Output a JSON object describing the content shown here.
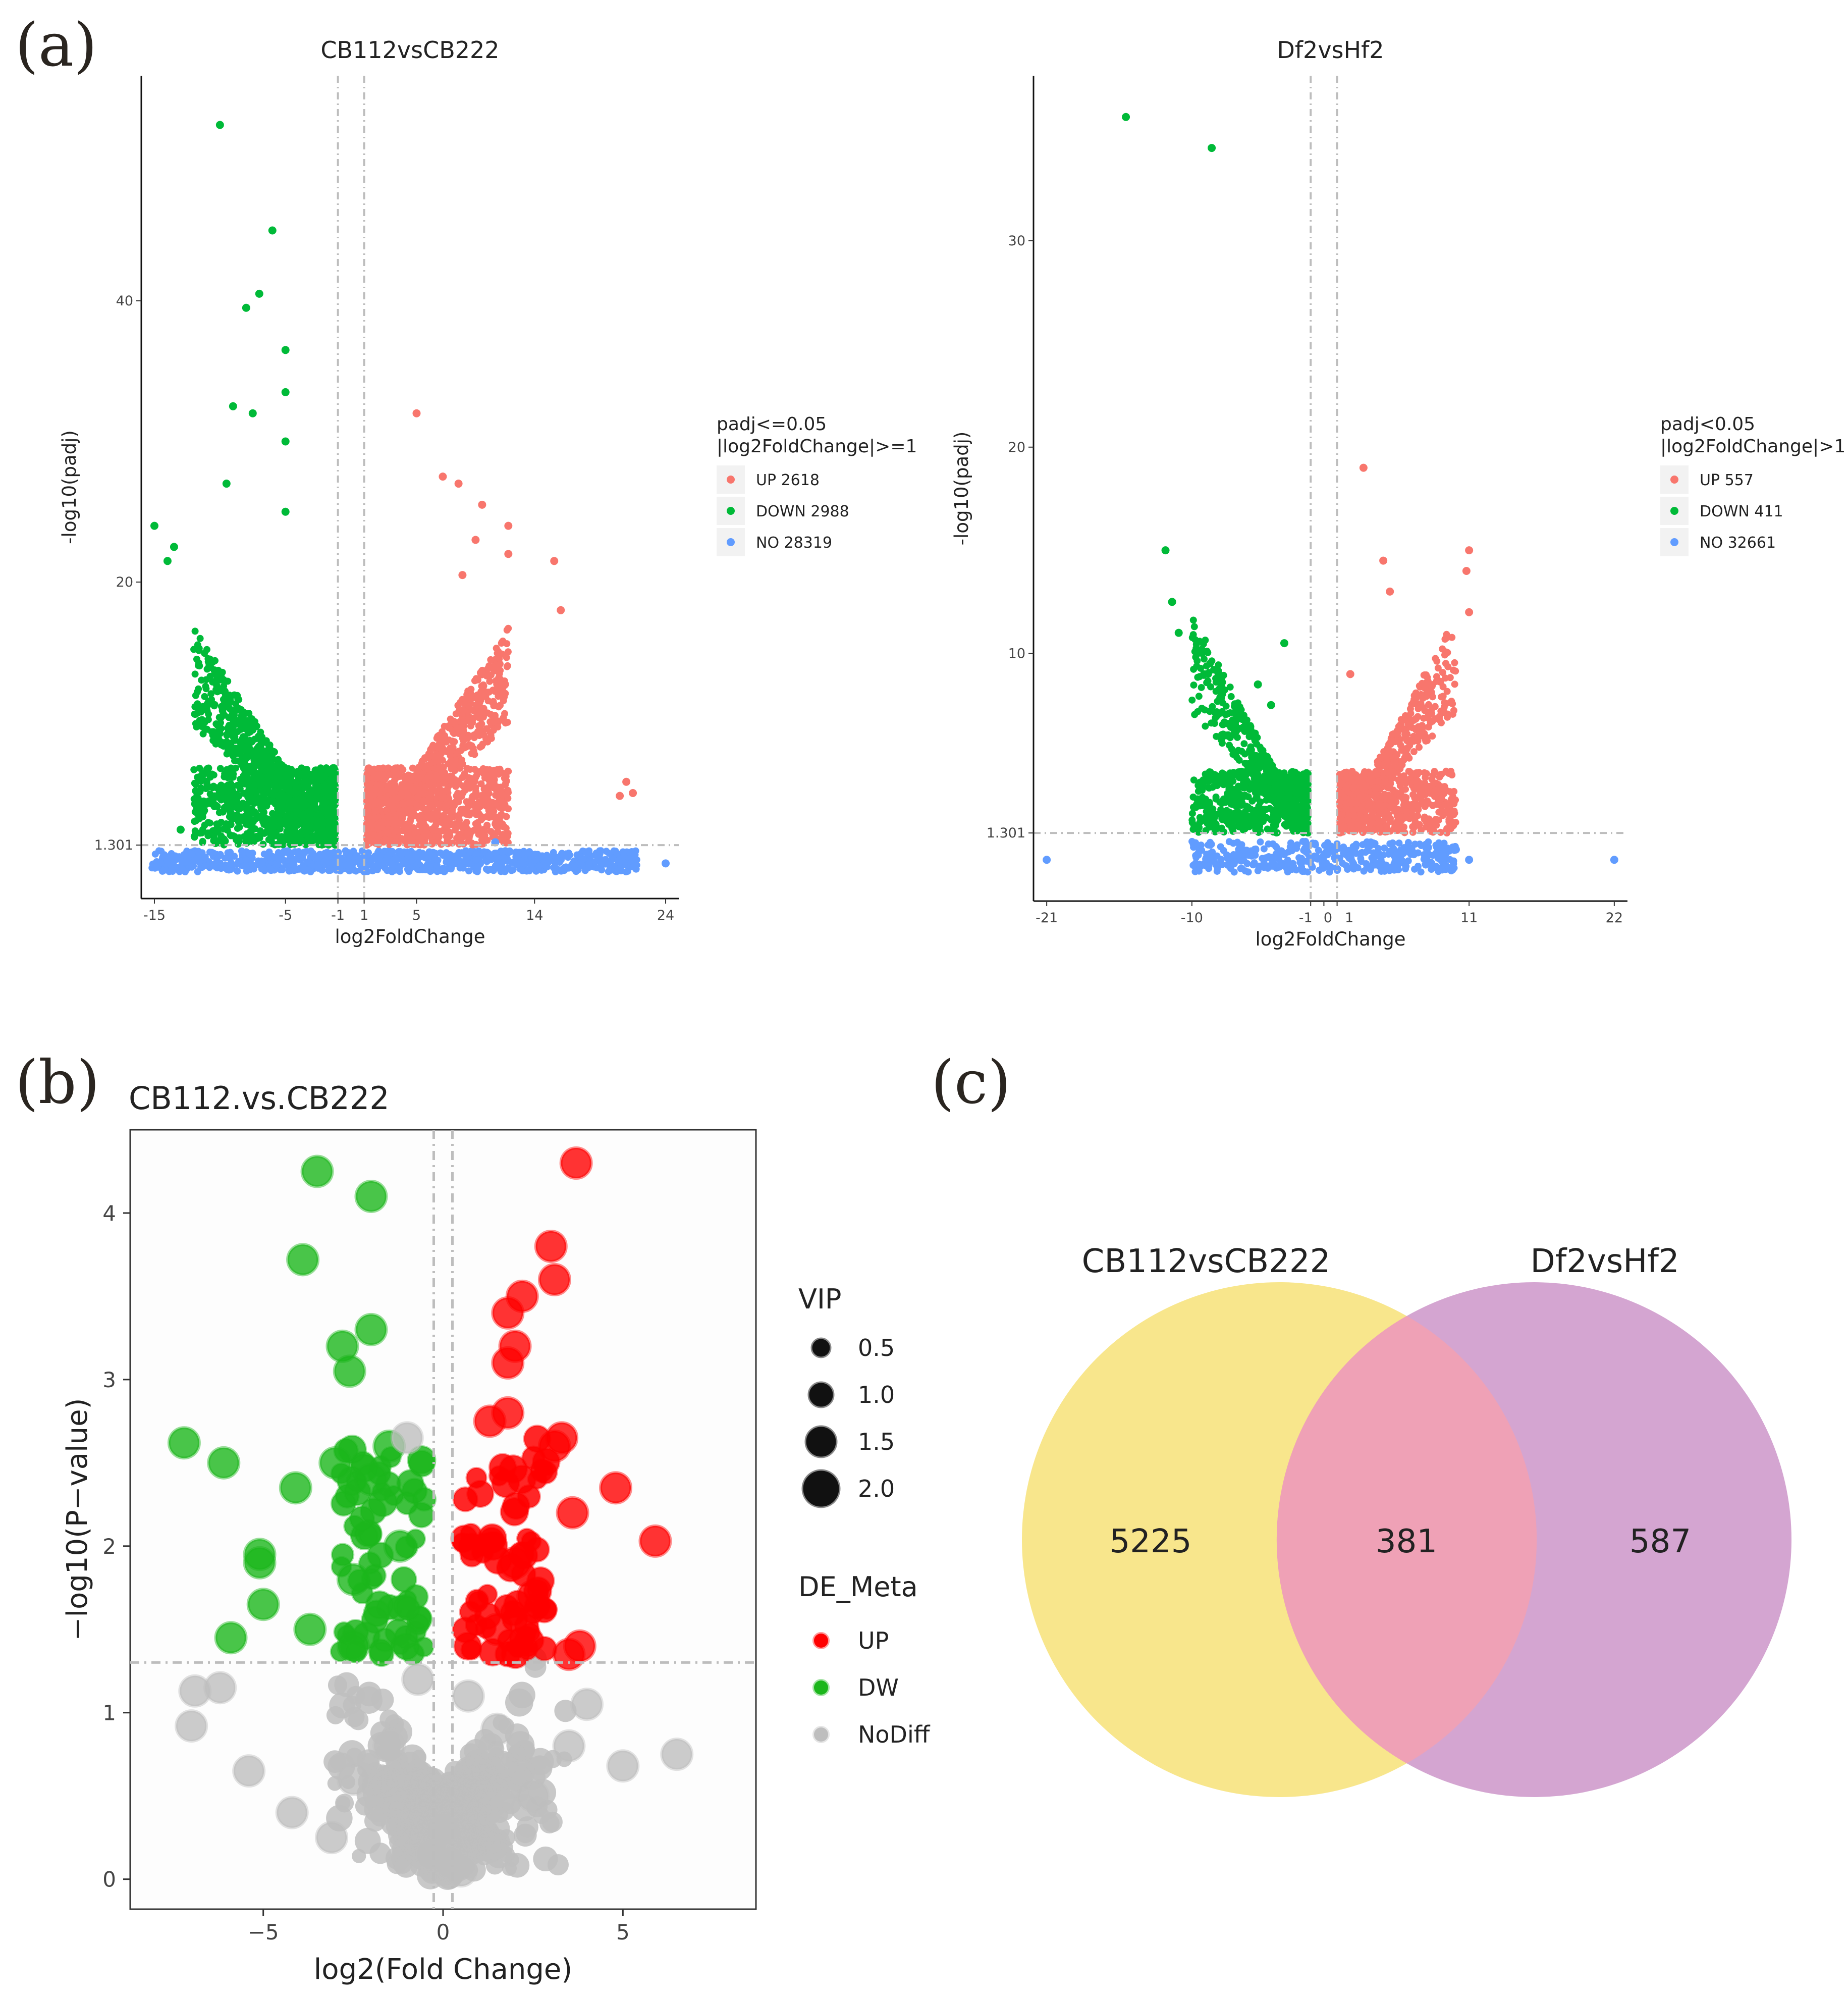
{
  "panel_labels": [
    "(a)",
    "(b)",
    "(c)"
  ],
  "colors": {
    "up_a": "#F8766D",
    "down_a": "#00BA38",
    "no_a": "#619CFF",
    "up_b": "#FF0000",
    "down_b": "#1CB61C",
    "no_b": "#BEBEBE",
    "venn_left": "#F8E68C",
    "venn_right": "#D4A5D1",
    "venn_overlap": "#EFA1B6",
    "ref_line": "#BDBDBD"
  },
  "chart_data": [
    {
      "id": "a-left",
      "type": "scatter",
      "title": "CB112vsCB222",
      "xlabel": "log2FoldChange",
      "ylabel": "-log10(padj)",
      "xlim": [
        -16,
        25
      ],
      "ylim": [
        -2.5,
        56
      ],
      "xticks": [
        -15,
        -5,
        -1,
        1,
        5,
        14,
        24
      ],
      "yticks": [
        1.301,
        20,
        40
      ],
      "vlines": [
        -1,
        1
      ],
      "hline": 1.301,
      "legend": {
        "title": [
          "padj<=0.05",
          "|log2FoldChange|>=1"
        ],
        "entries": [
          {
            "label": "UP 2618",
            "key": "up"
          },
          {
            "label": "DOWN 2988",
            "key": "down"
          },
          {
            "label": "NO 28319",
            "key": "no"
          }
        ]
      },
      "series": [
        {
          "name": "UP",
          "key": "up",
          "count": 2618,
          "notable_points": [
            [
              5,
              32
            ],
            [
              7,
              27.5
            ],
            [
              8.2,
              27
            ],
            [
              10,
              25.5
            ],
            [
              8.5,
              20.5
            ],
            [
              12,
              24
            ],
            [
              12,
              22
            ],
            [
              16,
              18
            ],
            [
              15.5,
              21.5
            ],
            [
              21,
              5.8
            ],
            [
              21.5,
              5
            ],
            [
              20.5,
              4.8
            ],
            [
              9.5,
              23
            ]
          ]
        },
        {
          "name": "DOWN",
          "key": "down",
          "count": 2988,
          "notable_points": [
            [
              -10,
              52.5
            ],
            [
              -6,
              45
            ],
            [
              -7,
              40.5
            ],
            [
              -8,
              39.5
            ],
            [
              -5,
              36.5
            ],
            [
              -9,
              32.5
            ],
            [
              -7.5,
              32
            ],
            [
              -5,
              33.5
            ],
            [
              -5,
              30
            ],
            [
              -9.5,
              27
            ],
            [
              -5,
              25
            ],
            [
              -15,
              24
            ],
            [
              -14,
              21.5
            ],
            [
              -13.5,
              22.5
            ],
            [
              -13,
              2.4
            ]
          ]
        },
        {
          "name": "NO",
          "key": "no",
          "count": 28319,
          "notable_points": [
            [
              24,
              0
            ],
            [
              4,
              0
            ],
            [
              11,
              1.5
            ],
            [
              8,
              0.5
            ]
          ]
        }
      ]
    },
    {
      "id": "a-right",
      "type": "scatter",
      "title": "Df2vsHf2",
      "xlabel": "log2FoldChange",
      "ylabel": "-log10(padj)",
      "xlim": [
        -22,
        23
      ],
      "ylim": [
        -2,
        38
      ],
      "xticks": [
        -21,
        -10,
        -1,
        0,
        1,
        11,
        22
      ],
      "ytick_values": [
        1.301,
        10,
        20,
        30
      ],
      "ytick_labels": [
        "1.301",
        "10",
        "20",
        "30"
      ],
      "xtick_labels": [
        "-21",
        "-10",
        "-1",
        "0",
        "1",
        "11",
        "22"
      ],
      "vlines": [
        -1,
        1
      ],
      "hline": 1.301,
      "legend": {
        "title": [
          "padj<0.05",
          "|log2FoldChange|>1"
        ],
        "entries": [
          {
            "label": "UP 557",
            "key": "up"
          },
          {
            "label": "DOWN 411",
            "key": "down"
          },
          {
            "label": "NO 32661",
            "key": "no"
          }
        ]
      },
      "series": [
        {
          "name": "UP",
          "key": "up",
          "count": 557,
          "notable_points": [
            [
              3,
              19
            ],
            [
              4.5,
              14.5
            ],
            [
              5,
              13
            ],
            [
              11,
              15
            ],
            [
              10.8,
              14
            ],
            [
              11,
              12
            ],
            [
              2,
              9
            ]
          ]
        },
        {
          "name": "DOWN",
          "key": "down",
          "count": 411,
          "notable_points": [
            [
              -15,
              36
            ],
            [
              -8.5,
              34.5
            ],
            [
              -12,
              15
            ],
            [
              -11.5,
              12.5
            ],
            [
              -11,
              11
            ],
            [
              -3,
              10.5
            ],
            [
              -5,
              8.5
            ],
            [
              -4,
              7.5
            ]
          ]
        },
        {
          "name": "NO",
          "key": "no",
          "count": 32661,
          "notable_points": [
            [
              -21,
              0
            ],
            [
              22,
              0
            ],
            [
              10,
              0.5
            ],
            [
              11,
              0
            ],
            [
              9,
              0.3
            ]
          ]
        }
      ]
    },
    {
      "id": "b",
      "type": "scatter",
      "title": "CB112.vs.CB222",
      "xlabel": "log2(Fold Change)",
      "ylabel": "−log10(P−value)",
      "xlim": [
        -8.7,
        8.7
      ],
      "ylim": [
        -0.18,
        4.5
      ],
      "xticks": [
        -5,
        0,
        5
      ],
      "xtick_labels": [
        "−5",
        "0",
        "5"
      ],
      "yticks": [
        0,
        1,
        2,
        3,
        4
      ],
      "vlines": [
        -0.26,
        0.26
      ],
      "hline": 1.301,
      "legend": {
        "size_title": "VIP",
        "size_entries": [
          "0.5",
          "1.0",
          "1.5",
          "2.0"
        ],
        "color_title": "DE_Meta",
        "color_entries": [
          {
            "label": "UP",
            "key": "up"
          },
          {
            "label": "DW",
            "key": "down"
          },
          {
            "label": "NoDiff",
            "key": "no"
          }
        ]
      },
      "series": [
        {
          "name": "UP",
          "key": "up",
          "notable_points": [
            [
              3.7,
              4.3
            ],
            [
              3,
              3.8
            ],
            [
              3.1,
              3.6
            ],
            [
              2.2,
              3.5
            ],
            [
              1.8,
              3.4
            ],
            [
              2,
              3.2
            ],
            [
              1.8,
              3.1
            ],
            [
              3.3,
              2.65
            ],
            [
              3.1,
              2.6
            ],
            [
              4.8,
              2.35
            ],
            [
              5.9,
              2.03
            ],
            [
              3.6,
              2.2
            ],
            [
              1.3,
              2.75
            ],
            [
              1.8,
              2.8
            ],
            [
              2,
              1.9
            ],
            [
              3.8,
              1.4
            ],
            [
              3.5,
              1.35
            ],
            [
              1.5,
              1.5
            ],
            [
              2.5,
              1.7
            ]
          ]
        },
        {
          "name": "DW",
          "key": "down",
          "notable_points": [
            [
              -3.5,
              4.25
            ],
            [
              -2,
              4.1
            ],
            [
              -3.9,
              3.72
            ],
            [
              -2,
              3.3
            ],
            [
              -2.8,
              3.2
            ],
            [
              -2.6,
              3.05
            ],
            [
              -7.2,
              2.62
            ],
            [
              -6.1,
              2.5
            ],
            [
              -4.1,
              2.35
            ],
            [
              -5.1,
              1.95
            ],
            [
              -5.1,
              1.9
            ],
            [
              -5,
              1.65
            ],
            [
              -5.9,
              1.45
            ],
            [
              -3,
              2.5
            ],
            [
              -2,
              2.4
            ],
            [
              -1.5,
              2.6
            ],
            [
              -1.2,
              2
            ],
            [
              -2.5,
              1.8
            ],
            [
              -3.7,
              1.5
            ],
            [
              -2.5,
              1.4
            ]
          ]
        },
        {
          "name": "NoDiff",
          "key": "no",
          "notable_points": [
            [
              6.5,
              0.75
            ],
            [
              5,
              0.68
            ],
            [
              4,
              1.05
            ],
            [
              3.5,
              0.8
            ],
            [
              -7,
              0.92
            ],
            [
              -6.9,
              1.13
            ],
            [
              -6.2,
              1.15
            ],
            [
              -5.4,
              0.65
            ],
            [
              -4.2,
              0.4
            ],
            [
              -3.1,
              0.25
            ],
            [
              -1,
              2.65
            ],
            [
              0.5,
              0.05
            ],
            [
              0.2,
              0.1
            ],
            [
              -0.3,
              0.15
            ],
            [
              -1.5,
              0.8
            ],
            [
              1.5,
              0.9
            ],
            [
              2.5,
              0.5
            ],
            [
              -2.5,
              0.6
            ],
            [
              0,
              0.3
            ],
            [
              -0.7,
              1.2
            ],
            [
              0.7,
              1.1
            ]
          ]
        }
      ]
    }
  ],
  "venn": {
    "left_label": "CB112vsCB222",
    "right_label": "Df2vsHf2",
    "left_only": "5225",
    "overlap": "381",
    "right_only": "587"
  }
}
